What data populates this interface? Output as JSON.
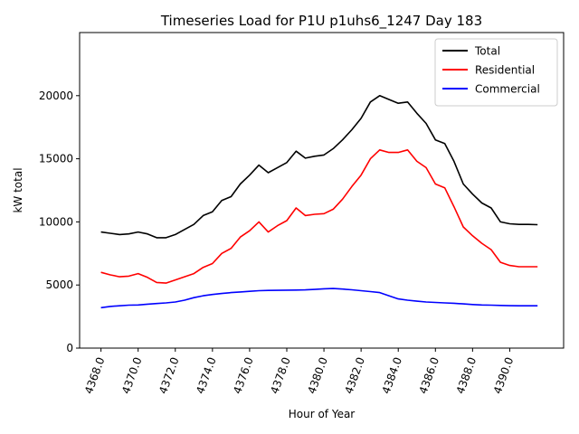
{
  "chart_data": {
    "type": "line",
    "title": "Timeseries Load for P1U p1uhs6_1247  Day 183",
    "xlabel": "Hour of Year",
    "ylabel": "kW total",
    "xlim": [
      4366.85,
      4392.9
    ],
    "ylim": [
      0,
      25000
    ],
    "x_ticks": [
      4368,
      4370,
      4372,
      4374,
      4376,
      4378,
      4380,
      4382,
      4384,
      4386,
      4388,
      4390
    ],
    "x_tick_labels": [
      "4368.0",
      "4370.0",
      "4372.0",
      "4374.0",
      "4376.0",
      "4378.0",
      "4380.0",
      "4382.0",
      "4384.0",
      "4386.0",
      "4388.0",
      "4390.0"
    ],
    "y_ticks": [
      0,
      5000,
      10000,
      15000,
      20000
    ],
    "y_tick_labels": [
      "0",
      "5000",
      "10000",
      "15000",
      "20000"
    ],
    "legend_position": "top-right",
    "grid": false,
    "x": [
      4368.0,
      4368.5,
      4369.0,
      4369.5,
      4370.0,
      4370.5,
      4371.0,
      4371.5,
      4372.0,
      4372.5,
      4373.0,
      4373.5,
      4374.0,
      4374.5,
      4375.0,
      4375.5,
      4376.0,
      4376.5,
      4377.0,
      4377.5,
      4378.0,
      4378.5,
      4379.0,
      4379.5,
      4380.0,
      4380.5,
      4381.0,
      4381.5,
      4382.0,
      4382.5,
      4383.0,
      4383.5,
      4384.0,
      4384.5,
      4385.0,
      4385.5,
      4386.0,
      4386.5,
      4387.0,
      4387.5,
      4388.0,
      4388.5,
      4389.0,
      4389.5,
      4390.0,
      4390.5,
      4391.0,
      4391.5
    ],
    "series": [
      {
        "name": "Total",
        "color": "#000000",
        "values": [
          9200,
          9100,
          9000,
          9050,
          9200,
          9050,
          8750,
          8750,
          9000,
          9400,
          9800,
          10500,
          10800,
          11700,
          12000,
          13000,
          13700,
          14500,
          13900,
          14300,
          14700,
          15600,
          15050,
          15200,
          15300,
          15800,
          16500,
          17300,
          18200,
          19500,
          20000,
          19700,
          19400,
          19500,
          18600,
          17800,
          16500,
          16200,
          14800,
          13000,
          12200,
          11500,
          11100,
          10000,
          9850,
          9800,
          9800,
          9780
        ]
      },
      {
        "name": "Residential",
        "color": "#ff0000",
        "values": [
          6000,
          5800,
          5650,
          5700,
          5900,
          5600,
          5200,
          5150,
          5400,
          5650,
          5900,
          6400,
          6700,
          7500,
          7900,
          8800,
          9300,
          10000,
          9200,
          9700,
          10100,
          11100,
          10500,
          10600,
          10650,
          11000,
          11800,
          12800,
          13700,
          15000,
          15700,
          15500,
          15500,
          15700,
          14800,
          14300,
          13000,
          12700,
          11200,
          9600,
          8900,
          8300,
          7800,
          6800,
          6550,
          6450,
          6450,
          6450
        ]
      },
      {
        "name": "Commercial",
        "color": "#0000ff",
        "values": [
          3200,
          3300,
          3350,
          3400,
          3420,
          3480,
          3530,
          3580,
          3650,
          3800,
          4000,
          4150,
          4250,
          4330,
          4400,
          4450,
          4500,
          4550,
          4570,
          4580,
          4590,
          4600,
          4610,
          4650,
          4700,
          4720,
          4680,
          4620,
          4550,
          4480,
          4400,
          4150,
          3900,
          3800,
          3720,
          3650,
          3620,
          3580,
          3550,
          3500,
          3450,
          3420,
          3400,
          3380,
          3360,
          3350,
          3350,
          3350
        ]
      }
    ]
  }
}
